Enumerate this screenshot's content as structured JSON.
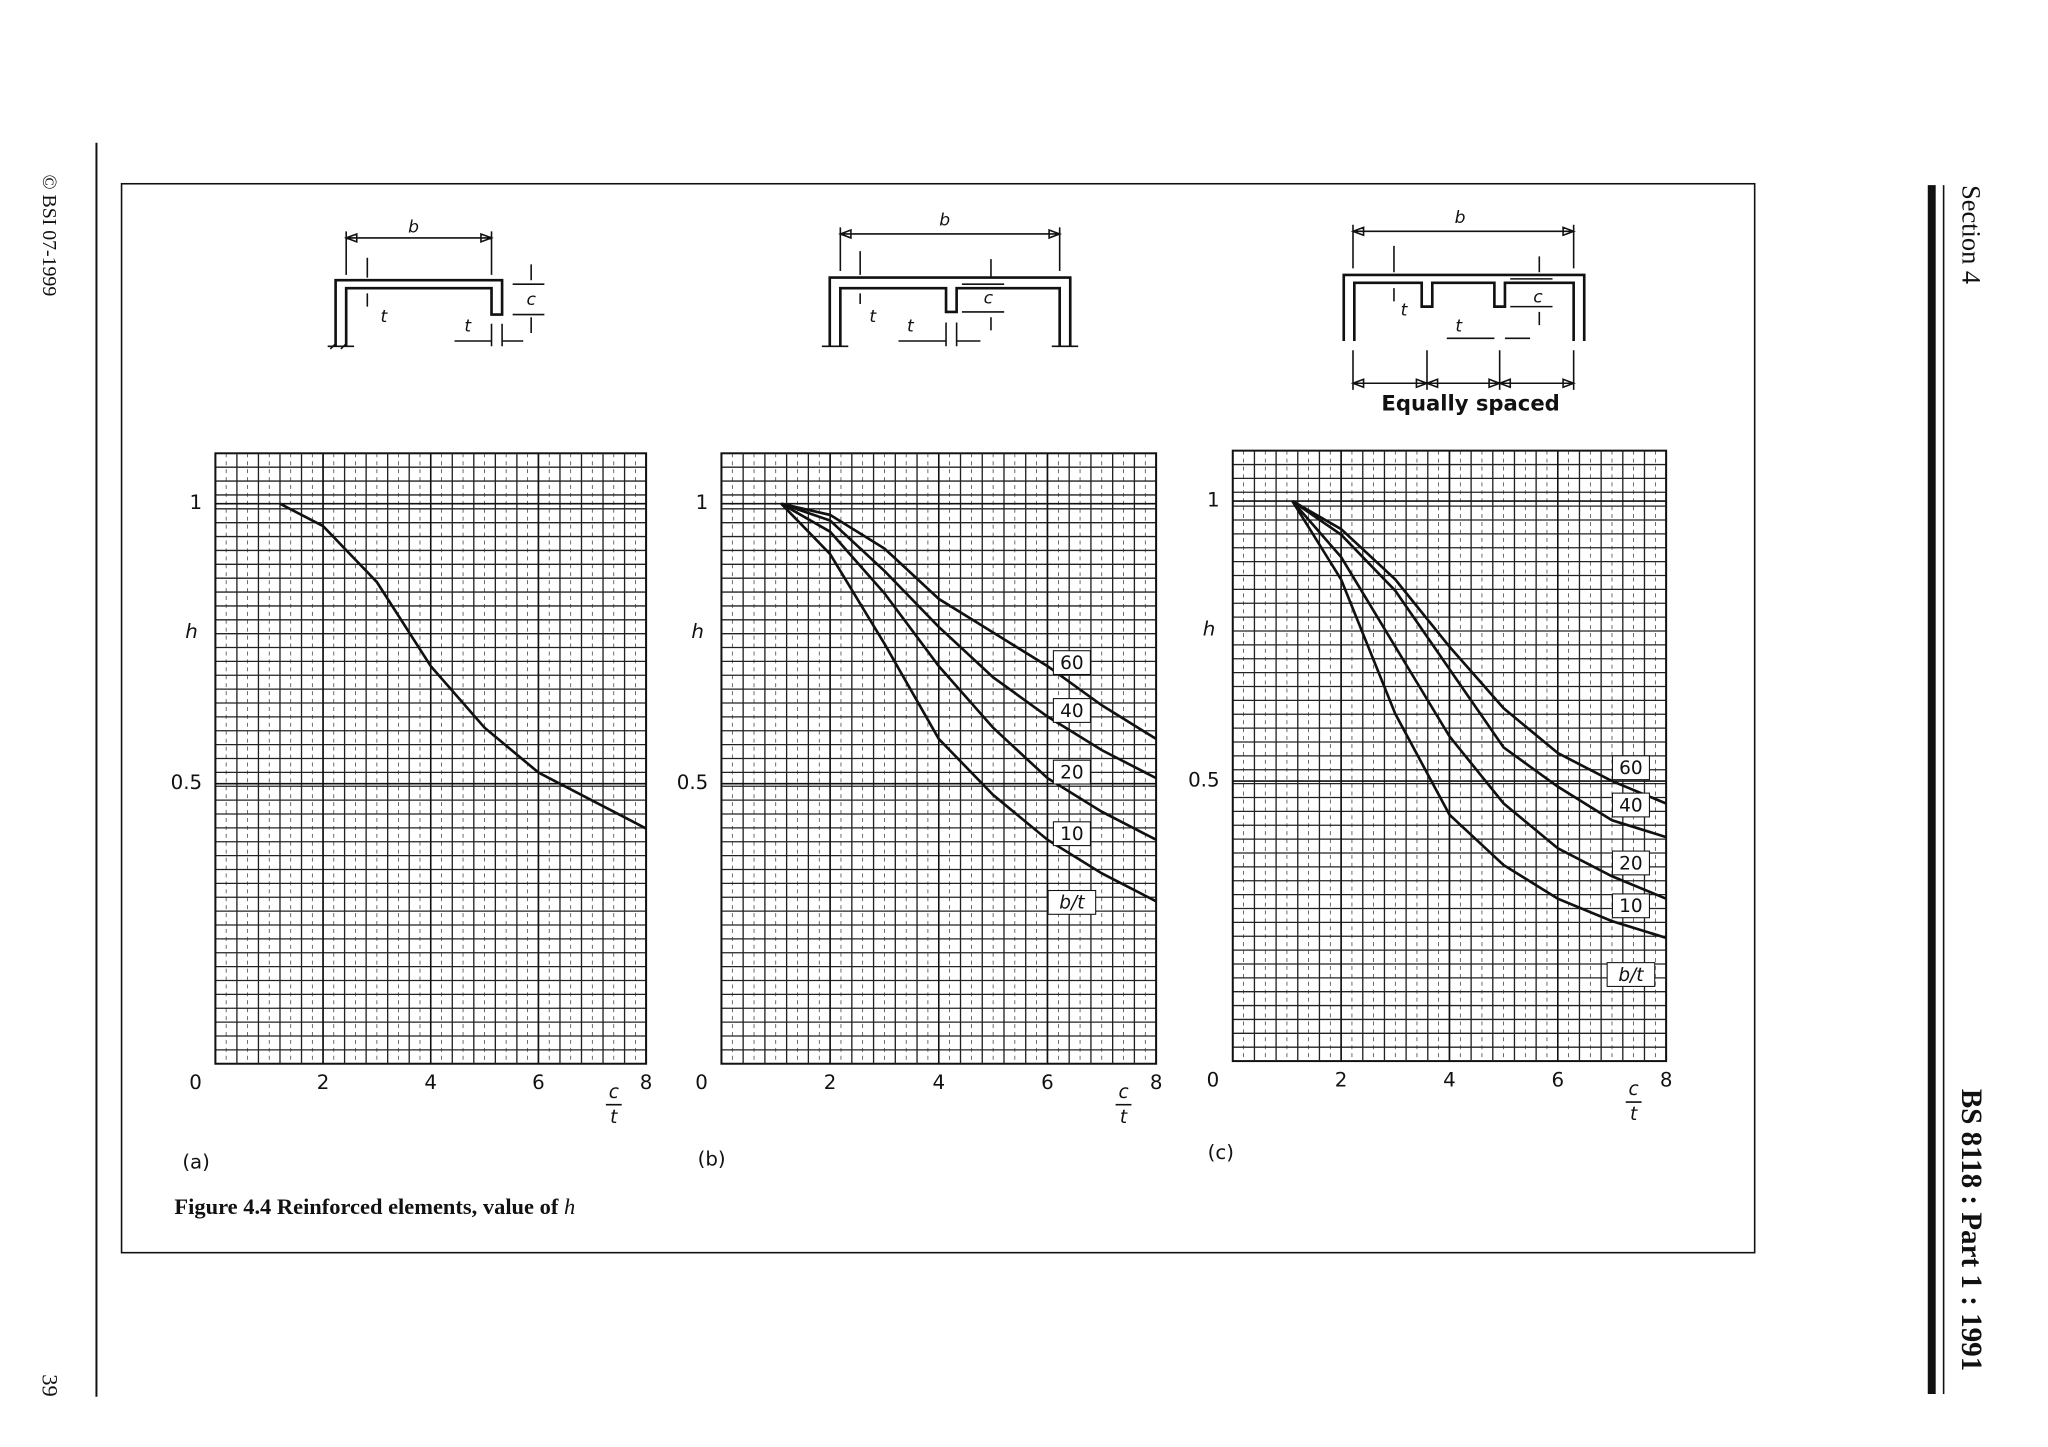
{
  "page": {
    "copyright": "© BSI 07-1999",
    "page_number": "39",
    "section": "Section 4",
    "standard": "BS 8118 : Part 1 : 1991"
  },
  "figure": {
    "caption": "Figure 4.4 Reinforced elements, value of ",
    "caption_symbol": "h"
  },
  "diagrams": [
    {
      "labels": [
        "b",
        "t",
        "c",
        "t"
      ]
    },
    {
      "labels": [
        "b",
        "t",
        "c",
        "t"
      ]
    },
    {
      "labels": [
        "b",
        "t",
        "c",
        "t"
      ],
      "note": "Equally spaced"
    }
  ],
  "chart_data": [
    {
      "type": "line",
      "label": "(a)",
      "y_label": "h",
      "x_label_numerator": "c",
      "x_label_denominator": "t",
      "xlim": [
        0,
        8
      ],
      "ylim": [
        0,
        1.09
      ],
      "xticks": [
        0,
        2,
        4,
        6,
        8
      ],
      "yticks": [
        0.5,
        1
      ],
      "grid": true,
      "x": [
        1.2,
        2,
        3,
        4,
        5,
        6,
        7,
        8
      ],
      "series": [
        {
          "color": "#111111",
          "values": [
            1,
            0.96,
            0.86,
            0.71,
            0.6,
            0.52,
            0.47,
            0.42
          ]
        }
      ]
    },
    {
      "type": "line",
      "label": "(b)",
      "y_label": "h",
      "x_label_numerator": "c",
      "x_label_denominator": "t",
      "xlim": [
        0,
        8
      ],
      "ylim": [
        0,
        1.09
      ],
      "xticks": [
        0,
        2,
        4,
        6,
        8
      ],
      "yticks": [
        0.5,
        1
      ],
      "grid": true,
      "legend_title": "b/t",
      "x": [
        1.1,
        2,
        3,
        4,
        5,
        6,
        7,
        8
      ],
      "series": [
        {
          "name": "60",
          "color": "#111111",
          "values": [
            1,
            0.98,
            0.92,
            0.83,
            0.77,
            0.71,
            0.64,
            0.58
          ]
        },
        {
          "name": "40",
          "color": "#111111",
          "values": [
            1,
            0.97,
            0.88,
            0.78,
            0.69,
            0.62,
            0.56,
            0.51
          ]
        },
        {
          "name": "20",
          "color": "#111111",
          "values": [
            1,
            0.95,
            0.84,
            0.71,
            0.6,
            0.51,
            0.45,
            0.4
          ]
        },
        {
          "name": "10",
          "color": "#111111",
          "values": [
            1,
            0.91,
            0.75,
            0.58,
            0.48,
            0.4,
            0.34,
            0.29
          ]
        }
      ]
    },
    {
      "type": "line",
      "label": "(c)",
      "y_label": "h",
      "x_label_numerator": "c",
      "x_label_denominator": "t",
      "xlim": [
        0,
        8
      ],
      "ylim": [
        0,
        1.09
      ],
      "xticks": [
        0,
        2,
        4,
        6,
        8
      ],
      "yticks": [
        0.5,
        1
      ],
      "grid": true,
      "legend_title": "b/t",
      "x": [
        1.1,
        2,
        3,
        4,
        5,
        6,
        7,
        8
      ],
      "series": [
        {
          "name": "60",
          "color": "#111111",
          "values": [
            1,
            0.95,
            0.86,
            0.74,
            0.63,
            0.55,
            0.5,
            0.46
          ]
        },
        {
          "name": "40",
          "color": "#111111",
          "values": [
            1,
            0.94,
            0.84,
            0.7,
            0.56,
            0.49,
            0.43,
            0.4
          ]
        },
        {
          "name": "20",
          "color": "#111111",
          "values": [
            1,
            0.9,
            0.74,
            0.58,
            0.46,
            0.38,
            0.33,
            0.29
          ]
        },
        {
          "name": "10",
          "color": "#111111",
          "values": [
            1,
            0.86,
            0.62,
            0.44,
            0.35,
            0.29,
            0.25,
            0.22
          ]
        }
      ]
    }
  ]
}
